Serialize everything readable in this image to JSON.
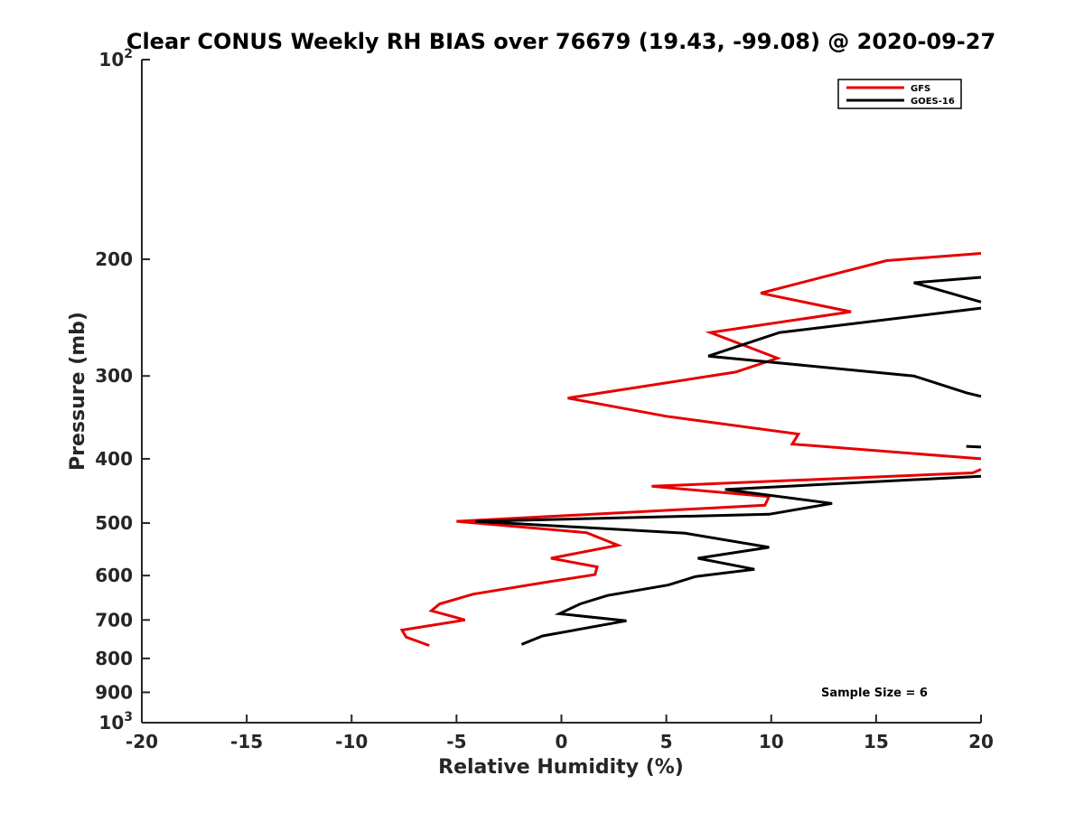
{
  "chart_data": {
    "type": "line",
    "title": "Clear CONUS Weekly RH BIAS over 76679 (19.43, -99.08) @ 2020-09-27",
    "xlabel": "Relative Humidity (%)",
    "ylabel": "Pressure (mb)",
    "xlim": [
      -20,
      20
    ],
    "ylim": [
      100,
      1000
    ],
    "y_scale": "log",
    "y_reversed": true,
    "grid": false,
    "legend_position": "top-right",
    "x_ticks": [
      "-20",
      "-15",
      "-10",
      "-5",
      "0",
      "5",
      "10",
      "15",
      "20"
    ],
    "y_ticks": [
      {
        "value": 100,
        "base": "10",
        "exp": "2"
      },
      {
        "value": 200,
        "base": "200",
        "exp": ""
      },
      {
        "value": 300,
        "base": "300",
        "exp": ""
      },
      {
        "value": 400,
        "base": "400",
        "exp": ""
      },
      {
        "value": 500,
        "base": "500",
        "exp": ""
      },
      {
        "value": 600,
        "base": "600",
        "exp": ""
      },
      {
        "value": 700,
        "base": "700",
        "exp": ""
      },
      {
        "value": 800,
        "base": "800",
        "exp": ""
      },
      {
        "value": 900,
        "base": "900",
        "exp": ""
      },
      {
        "value": 1000,
        "base": "10",
        "exp": "3"
      }
    ],
    "annotation": "Sample Size = 6",
    "series": [
      {
        "name": "GFS",
        "color": "#e60000",
        "segments": [
          [
            [
              20,
              196
            ],
            [
              15.5,
              201
            ],
            [
              9.5,
              225
            ],
            [
              13.8,
              240
            ],
            [
              7.1,
              258
            ],
            [
              10.3,
              282
            ],
            [
              8.3,
              296
            ],
            [
              0.3,
              324
            ],
            [
              5,
              345
            ],
            [
              11.3,
              367
            ],
            [
              11,
              380
            ],
            [
              20,
              400
            ]
          ],
          [
            [
              20,
              415
            ],
            [
              19.6,
              420
            ],
            [
              4.3,
              440
            ],
            [
              9.9,
              456
            ],
            [
              9.7,
              470
            ],
            [
              -5,
              497
            ],
            [
              1.2,
              517
            ],
            [
              2.7,
              540
            ],
            [
              -0.5,
              565
            ],
            [
              1.7,
              582
            ],
            [
              1.6,
              598
            ],
            [
              -0.6,
              613
            ],
            [
              -4.2,
              640
            ],
            [
              -5.8,
              662
            ],
            [
              -6.2,
              678
            ],
            [
              -4.6,
              700
            ],
            [
              -7.6,
              725
            ],
            [
              -7.4,
              743
            ],
            [
              -6.3,
              765
            ]
          ]
        ]
      },
      {
        "name": "GOES-16",
        "color": "#000000",
        "segments": [
          [
            [
              20,
              213
            ],
            [
              16.8,
              217
            ],
            [
              20,
              232
            ]
          ],
          [
            [
              20,
              237
            ],
            [
              10.4,
              258
            ],
            [
              7,
              280
            ],
            [
              16.8,
              300
            ],
            [
              19.3,
              318
            ],
            [
              20,
              322
            ]
          ],
          [
            [
              19.3,
              383
            ],
            [
              20,
              384
            ]
          ],
          [
            [
              20,
              425
            ],
            [
              7.8,
              445
            ],
            [
              12.9,
              467
            ],
            [
              9.9,
              485
            ],
            [
              -4.1,
              497
            ],
            [
              5.9,
              518
            ],
            [
              9.9,
              544
            ],
            [
              6.5,
              565
            ],
            [
              9.2,
              587
            ],
            [
              6.4,
              602
            ],
            [
              5.1,
              620
            ],
            [
              2.2,
              643
            ],
            [
              0.9,
              662
            ],
            [
              -0.1,
              685
            ],
            [
              3.1,
              702
            ],
            [
              -0.9,
              740
            ],
            [
              -1.9,
              762
            ]
          ]
        ]
      }
    ]
  }
}
